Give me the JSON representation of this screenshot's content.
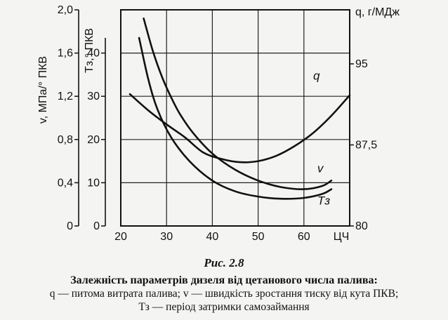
{
  "chart_data": {
    "type": "line",
    "x_axis": {
      "label": "ЦЧ",
      "range": [
        20,
        70
      ],
      "ticks": [
        "20",
        "30",
        "40",
        "50",
        "60"
      ]
    },
    "y_axes": {
      "left_outer": {
        "label": "v, МПа/° ПКВ",
        "range": [
          0,
          2.0
        ],
        "ticks": [
          "0",
          "0,4",
          "0,8",
          "1,2",
          "1,6",
          "2,0"
        ]
      },
      "left_inner": {
        "label": "Tз,° ПКВ",
        "range": [
          0,
          50
        ],
        "ticks": [
          "0",
          "10",
          "20",
          "30",
          "40"
        ]
      },
      "right": {
        "label": "q, г/МДж",
        "range": [
          80,
          100
        ],
        "ticks": [
          "80",
          "87,5",
          "95"
        ]
      }
    },
    "grid": true,
    "series": [
      {
        "name": "q",
        "axis": "right",
        "x": [
          22,
          26,
          30,
          34,
          38,
          42,
          46,
          50,
          54,
          58,
          62,
          66,
          70
        ],
        "y": [
          92.2,
          90.7,
          89.4,
          88.2,
          86.8,
          86.2,
          85.9,
          86.0,
          86.5,
          87.4,
          88.6,
          90.2,
          92.1
        ]
      },
      {
        "name": "v",
        "axis": "left_outer",
        "x": [
          25,
          27,
          29,
          31,
          33,
          36,
          40,
          45,
          50,
          55,
          60,
          64,
          66
        ],
        "y": [
          1.92,
          1.62,
          1.38,
          1.19,
          1.03,
          0.85,
          0.67,
          0.52,
          0.42,
          0.36,
          0.34,
          0.37,
          0.42
        ]
      },
      {
        "name": "Tз",
        "axis": "left_inner",
        "x": [
          24,
          26,
          28,
          31,
          35,
          40,
          45,
          50,
          55,
          60,
          64,
          66
        ],
        "y": [
          43.5,
          34.0,
          27.0,
          20.5,
          15.0,
          10.5,
          8.0,
          6.8,
          6.3,
          6.5,
          7.4,
          8.5
        ]
      }
    ]
  },
  "caption": {
    "figure_label": "Рис. 2.8",
    "title": "Залежність параметрів дизеля від цетанового числа палива:",
    "line1": "q — питома витрата палива; v — швидкість зростання тиску від кута ПКВ;",
    "line2": "Tз — період затримки самозаймання"
  }
}
